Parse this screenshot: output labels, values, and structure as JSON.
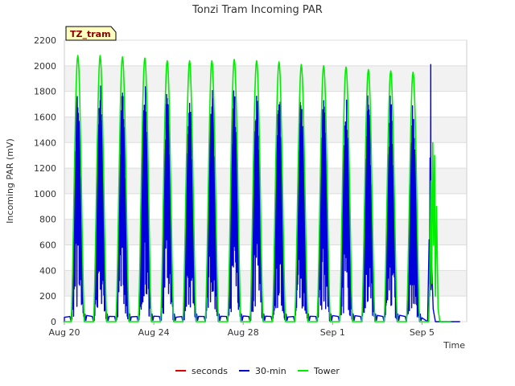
{
  "chart_data": {
    "type": "line",
    "title": "Tonzi Tram Incoming PAR",
    "site_label": "TZ_tram",
    "xlabel": "Time",
    "ylabel": "Incoming PAR (mV)",
    "ylim": [
      0,
      2200
    ],
    "yticks": [
      0,
      200,
      400,
      600,
      800,
      1000,
      1200,
      1400,
      1600,
      1800,
      2000,
      2200
    ],
    "xlim_days": [
      0,
      18
    ],
    "xticks": [
      {
        "day": 0,
        "label": "Aug 20"
      },
      {
        "day": 4,
        "label": "Aug 24"
      },
      {
        "day": 8,
        "label": "Aug 28"
      },
      {
        "day": 12,
        "label": "Sep 1"
      },
      {
        "day": 16,
        "label": "Sep 5"
      }
    ],
    "grid": true,
    "legend_position": "bottom",
    "series": [
      {
        "name": "seconds",
        "color": "#dd0000",
        "values": []
      },
      {
        "name": "30-min",
        "color": "#0000dd",
        "daily_peaks": [
          1890,
          1920,
          1900,
          1880,
          1860,
          1850,
          1850,
          1860,
          1830,
          1830,
          1820,
          1810,
          1810,
          1800,
          1790,
          1780,
          2010
        ]
      },
      {
        "name": "Tower",
        "color": "#00ee00",
        "daily_peaks": [
          2080,
          2080,
          2070,
          2060,
          2040,
          2040,
          2040,
          2050,
          2040,
          2030,
          2010,
          2000,
          1990,
          1970,
          1960,
          1950,
          1450
        ]
      }
    ]
  }
}
